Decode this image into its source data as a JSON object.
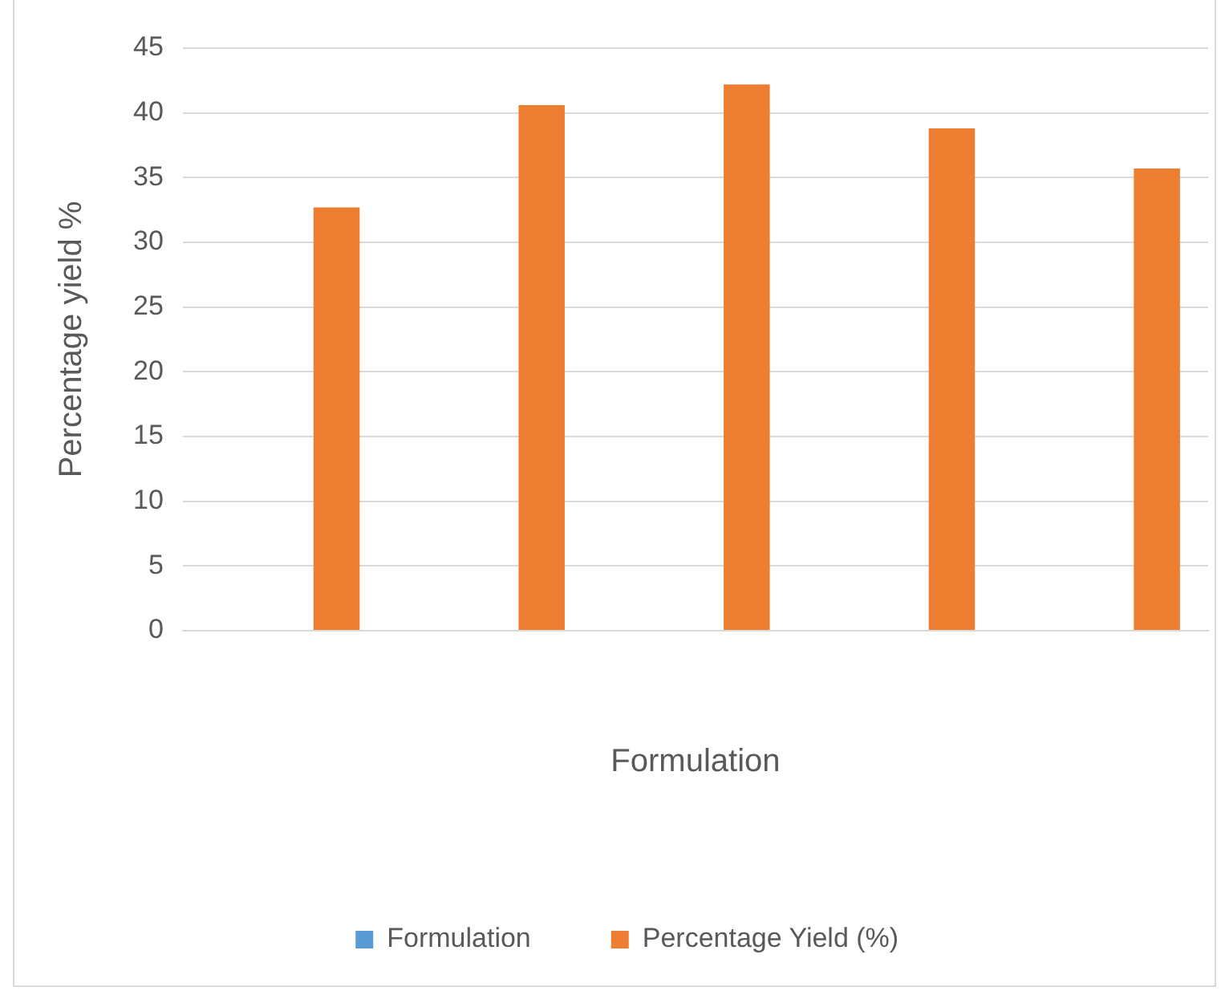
{
  "chart_data": {
    "type": "bar",
    "xlabel": "Formulation",
    "ylabel": "Percentage yield %",
    "categories": [
      null,
      null,
      null,
      null,
      null
    ],
    "series": [
      {
        "name": "Formulation",
        "color": "#5b9bd5",
        "values": [
          null,
          null,
          null,
          null,
          null
        ]
      },
      {
        "name": "Percentage Yield (%)",
        "color": "#ed7d31",
        "values": [
          32.7,
          40.6,
          42.2,
          38.8,
          35.7
        ]
      }
    ],
    "ylim": [
      0,
      45
    ],
    "yticks": [
      0,
      5,
      10,
      15,
      20,
      25,
      30,
      35,
      40,
      45
    ],
    "grid": "y",
    "legend": "bottom",
    "tick_labels": "y"
  }
}
